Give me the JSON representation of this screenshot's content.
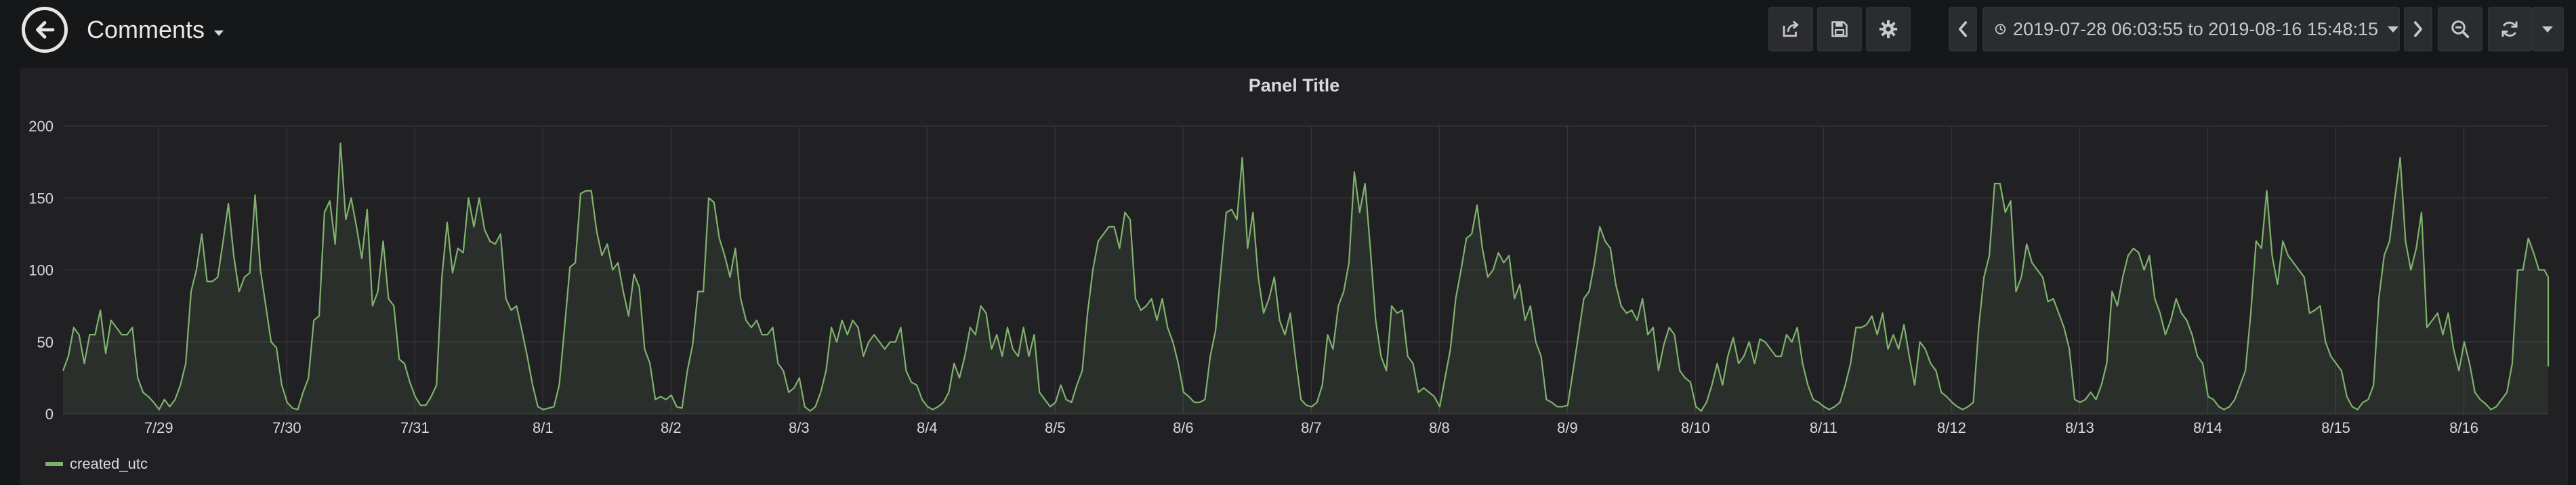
{
  "dashboard": {
    "title": "Comments"
  },
  "toolbar": {
    "icons": [
      "share-icon",
      "save-icon",
      "gear-icon"
    ],
    "time_range": "2019-07-28 06:03:55 to 2019-08-16 15:48:15",
    "time_icons": [
      "chevron-left-icon",
      "clock-icon",
      "caret-down-icon",
      "chevron-right-icon",
      "zoom-out-icon",
      "refresh-icon",
      "caret-down-icon"
    ]
  },
  "colors": {
    "background": "#161719",
    "panel": "#212124",
    "series": "#7eb26d",
    "grid": "#353538"
  },
  "panel": {
    "title": "Panel Title"
  },
  "chart_data": {
    "type": "area",
    "title": "Panel Title",
    "xlabel": "",
    "ylabel": "",
    "ylim": [
      0,
      200
    ],
    "y_ticks": [
      0,
      50,
      100,
      150,
      200
    ],
    "grid": true,
    "legend": "bottom-left",
    "x_range": [
      "2019-07-28 06:03:55",
      "2019-08-16 15:48:15"
    ],
    "x_ticks": [
      "7/29",
      "7/30",
      "7/31",
      "8/1",
      "8/2",
      "8/3",
      "8/4",
      "8/5",
      "8/6",
      "8/7",
      "8/8",
      "8/9",
      "8/10",
      "8/11",
      "8/12",
      "8/13",
      "8/14",
      "8/15",
      "8/16"
    ],
    "interval_hours": 1,
    "series": [
      {
        "name": "created_utc",
        "values": [
          30,
          40,
          60,
          55,
          35,
          55,
          55,
          72,
          42,
          65,
          60,
          55,
          55,
          60,
          25,
          15,
          12,
          8,
          3,
          10,
          5,
          10,
          20,
          35,
          85,
          100,
          125,
          92,
          92,
          95,
          120,
          146,
          110,
          85,
          95,
          98,
          152,
          100,
          75,
          50,
          46,
          20,
          8,
          4,
          3,
          15,
          25,
          65,
          68,
          140,
          148,
          118,
          188,
          135,
          150,
          130,
          108,
          142,
          75,
          85,
          120,
          80,
          75,
          38,
          35,
          22,
          12,
          6,
          6,
          12,
          20,
          95,
          133,
          98,
          115,
          112,
          150,
          130,
          150,
          128,
          120,
          118,
          125,
          80,
          72,
          75,
          58,
          40,
          20,
          5,
          3,
          4,
          5,
          20,
          60,
          102,
          105,
          153,
          155,
          155,
          127,
          110,
          118,
          100,
          105,
          85,
          68,
          97,
          88,
          45,
          35,
          10,
          12,
          10,
          13,
          5,
          4,
          30,
          48,
          85,
          85,
          150,
          147,
          122,
          110,
          95,
          115,
          80,
          65,
          60,
          65,
          55,
          55,
          60,
          35,
          30,
          15,
          18,
          25,
          5,
          2,
          5,
          15,
          30,
          60,
          50,
          65,
          55,
          65,
          60,
          40,
          50,
          55,
          50,
          45,
          50,
          50,
          60,
          30,
          22,
          20,
          10,
          5,
          3,
          5,
          8,
          15,
          35,
          25,
          40,
          60,
          55,
          75,
          70,
          45,
          55,
          40,
          60,
          45,
          40,
          60,
          40,
          55,
          15,
          10,
          5,
          8,
          20,
          10,
          8,
          20,
          30,
          70,
          100,
          120,
          125,
          130,
          130,
          115,
          140,
          135,
          80,
          72,
          75,
          80,
          65,
          80,
          60,
          50,
          35,
          15,
          12,
          8,
          8,
          10,
          40,
          58,
          100,
          140,
          142,
          135,
          178,
          115,
          140,
          95,
          70,
          80,
          95,
          65,
          55,
          70,
          38,
          10,
          6,
          5,
          8,
          20,
          55,
          45,
          75,
          85,
          105,
          168,
          140,
          160,
          115,
          65,
          40,
          30,
          75,
          70,
          72,
          40,
          35,
          15,
          18,
          15,
          12,
          5,
          25,
          45,
          80,
          100,
          122,
          125,
          145,
          115,
          95,
          100,
          112,
          105,
          110,
          80,
          90,
          65,
          75,
          50,
          40,
          10,
          8,
          5,
          5,
          6,
          30,
          55,
          80,
          85,
          105,
          130,
          120,
          115,
          90,
          75,
          70,
          72,
          65,
          80,
          55,
          60,
          30,
          48,
          60,
          55,
          30,
          25,
          22,
          5,
          2,
          8,
          20,
          35,
          20,
          40,
          53,
          35,
          40,
          50,
          35,
          52,
          50,
          45,
          40,
          40,
          55,
          50,
          60,
          35,
          20,
          10,
          8,
          5,
          3,
          5,
          8,
          20,
          35,
          60,
          60,
          62,
          68,
          55,
          70,
          45,
          55,
          45,
          62,
          40,
          20,
          50,
          45,
          35,
          30,
          15,
          12,
          8,
          5,
          3,
          5,
          8,
          60,
          95,
          110,
          160,
          160,
          140,
          148,
          85,
          95,
          118,
          105,
          100,
          95,
          78,
          80,
          70,
          60,
          45,
          10,
          8,
          10,
          15,
          10,
          20,
          35,
          85,
          75,
          95,
          110,
          115,
          112,
          100,
          110,
          80,
          70,
          55,
          65,
          80,
          70,
          65,
          55,
          40,
          35,
          12,
          10,
          5,
          3,
          5,
          10,
          20,
          30,
          70,
          120,
          115,
          155,
          110,
          90,
          120,
          110,
          105,
          100,
          95,
          70,
          72,
          75,
          50,
          40,
          35,
          30,
          12,
          5,
          3,
          8,
          10,
          20,
          80,
          110,
          120,
          150,
          178,
          120,
          100,
          115,
          140,
          60,
          65,
          70,
          55,
          70,
          45,
          30,
          50,
          35,
          15,
          10,
          7,
          3,
          5,
          10,
          15,
          35,
          100,
          100,
          122,
          112,
          100,
          100,
          95,
          88,
          40,
          33
        ]
      }
    ]
  }
}
